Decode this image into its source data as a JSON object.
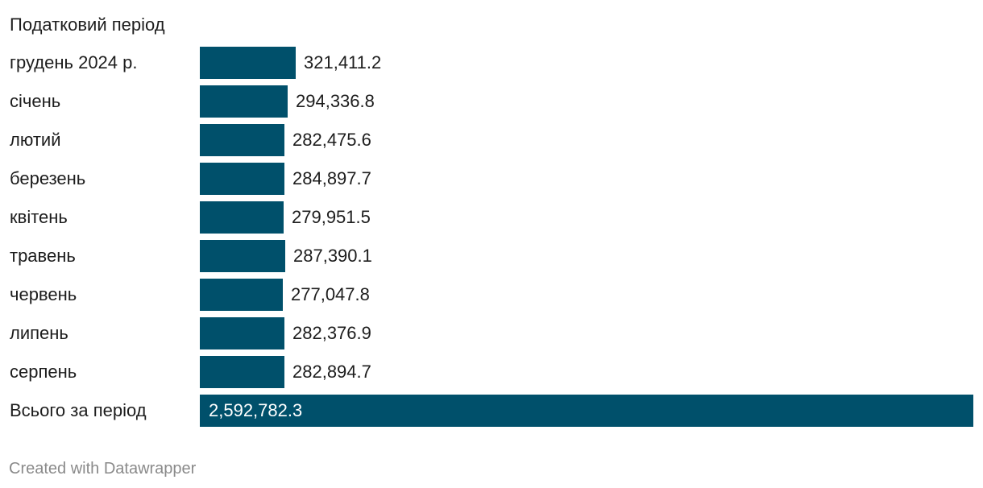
{
  "header": {
    "column_label": "Податковий період"
  },
  "chart_data": {
    "type": "bar",
    "orientation": "horizontal",
    "categories": [
      "грудень 2024 р.",
      "січень",
      "лютий",
      "березень",
      "квітень",
      "травень",
      "червень",
      "липень",
      "серпень",
      "Всього за період"
    ],
    "values": [
      321411.2,
      294336.8,
      282475.6,
      284897.7,
      279951.5,
      287390.1,
      277047.8,
      282376.9,
      282894.7,
      2592782.3
    ],
    "value_labels": [
      "321,411.2",
      "294,336.8",
      "282,475.6",
      "284,897.7",
      "279,951.5",
      "287,390.1",
      "277,047.8",
      "282,376.9",
      "282,894.7",
      "2,592,782.3"
    ],
    "xlim": [
      0,
      2592782.3
    ],
    "bar_color": "#00506b",
    "grid": false,
    "legend": "none"
  },
  "footer": {
    "credit": "Created with Datawrapper"
  }
}
